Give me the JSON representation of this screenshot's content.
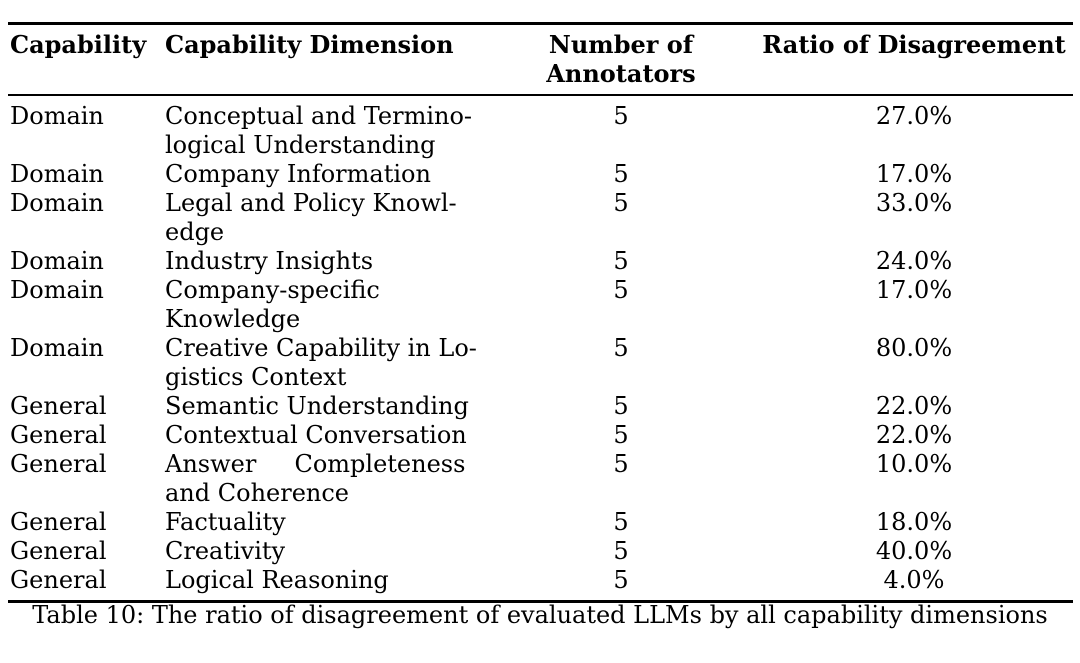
{
  "table": {
    "columns": [
      "Capability",
      "Capability Dimension",
      "Number of Annotators",
      "Ratio of Disagreement"
    ],
    "rows": [
      {
        "capability": "Domain",
        "dimension": "Conceptual and Termino-\nlogical Understanding",
        "annotators": "5",
        "disagreement": "27.0%"
      },
      {
        "capability": "Domain",
        "dimension": "Company Information",
        "annotators": "5",
        "disagreement": "17.0%"
      },
      {
        "capability": "Domain",
        "dimension": "Legal and Policy Knowl-\nedge",
        "annotators": "5",
        "disagreement": "33.0%"
      },
      {
        "capability": "Domain",
        "dimension": "Industry Insights",
        "annotators": "5",
        "disagreement": "24.0%"
      },
      {
        "capability": "Domain",
        "dimension": "Company-specific\nKnowledge",
        "annotators": "5",
        "disagreement": "17.0%"
      },
      {
        "capability": "Domain",
        "dimension": "Creative Capability in Lo-\ngistics Context",
        "annotators": "5",
        "disagreement": "80.0%"
      },
      {
        "capability": "General",
        "dimension": "Semantic Understanding",
        "annotators": "5",
        "disagreement": "22.0%"
      },
      {
        "capability": "General",
        "dimension": "Contextual Conversation",
        "annotators": "5",
        "disagreement": "22.0%"
      },
      {
        "capability": "General",
        "dimension": "Answer     Completeness\nand Coherence",
        "annotators": "5",
        "disagreement": "10.0%"
      },
      {
        "capability": "General",
        "dimension": "Factuality",
        "annotators": "5",
        "disagreement": "18.0%"
      },
      {
        "capability": "General",
        "dimension": "Creativity",
        "annotators": "5",
        "disagreement": "40.0%"
      },
      {
        "capability": "General",
        "dimension": "Logical Reasoning",
        "annotators": "5",
        "disagreement": "4.0%"
      }
    ],
    "caption": "Table 10: The ratio of disagreement of evaluated LLMs by all capability dimensions"
  }
}
